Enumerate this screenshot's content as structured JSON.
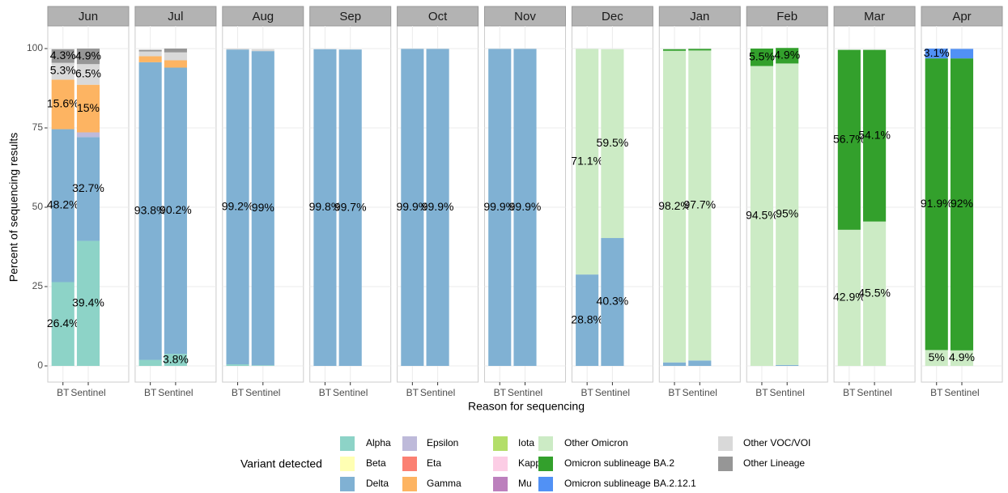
{
  "chart_data": {
    "type": "stacked-bar-facets",
    "y_label": "Percent of sequencing results",
    "x_label": "Reason for sequencing",
    "legend_title": "Variant detected",
    "ylim": [
      0,
      100
    ],
    "yticks": [
      0,
      25,
      50,
      75,
      100
    ],
    "grid": true,
    "facets": [
      "Jun",
      "Jul",
      "Aug",
      "Sep",
      "Oct",
      "Nov",
      "Dec",
      "Jan",
      "Feb",
      "Mar",
      "Apr"
    ],
    "categories": [
      "BT",
      "Sentinel"
    ],
    "series": [
      {
        "name": "Alpha",
        "color": "#8dd3c7",
        "values": [
          [
            26.4,
            39.4
          ],
          [
            1.9,
            3.8
          ],
          [
            0.5,
            0.2
          ],
          [
            0,
            0
          ],
          [
            0,
            0
          ],
          [
            0,
            0
          ],
          [
            0,
            0
          ],
          [
            0,
            0
          ],
          [
            0,
            0
          ],
          [
            0,
            0
          ],
          [
            0,
            0
          ]
        ],
        "value_labels": [
          [
            "26.4%",
            "39.4%"
          ],
          [
            null,
            "3.8%"
          ],
          [
            null,
            null
          ],
          [
            null,
            null
          ],
          [
            null,
            null
          ],
          [
            null,
            null
          ],
          [
            null,
            null
          ],
          [
            null,
            null
          ],
          [
            null,
            null
          ],
          [
            null,
            null
          ],
          [
            null,
            null
          ]
        ]
      },
      {
        "name": "Beta",
        "color": "#ffffb3"
      },
      {
        "name": "Delta",
        "color": "#80b1d3",
        "values": [
          [
            48.2,
            32.7
          ],
          [
            93.8,
            90.2
          ],
          [
            99.2,
            99
          ],
          [
            99.8,
            99.7
          ],
          [
            99.9,
            99.9
          ],
          [
            99.9,
            99.9
          ],
          [
            28.8,
            40.3
          ],
          [
            1.1,
            1.7
          ],
          [
            0,
            0.3
          ],
          [
            0,
            0
          ],
          [
            0,
            0
          ]
        ],
        "value_labels": [
          [
            "48.2%",
            "32.7%"
          ],
          [
            "93.8%",
            "90.2%"
          ],
          [
            "99.2%",
            "99%"
          ],
          [
            "99.8%",
            "99.7%"
          ],
          [
            "99.9%",
            "99.9%"
          ],
          [
            "99.9%",
            "99.9%"
          ],
          [
            "28.8%",
            "40.3%"
          ],
          [
            null,
            null
          ],
          [
            null,
            null
          ],
          [
            null,
            null
          ],
          [
            null,
            null
          ]
        ]
      },
      {
        "name": "Epsilon",
        "color": "#bebada",
        "values": [
          [
            0,
            1.5
          ],
          [
            0,
            0
          ],
          [
            0,
            0
          ],
          [
            0,
            0
          ],
          [
            0,
            0
          ],
          [
            0,
            0
          ],
          [
            0,
            0
          ],
          [
            0,
            0
          ],
          [
            0,
            0
          ],
          [
            0,
            0
          ],
          [
            0,
            0
          ]
        ]
      },
      {
        "name": "Eta",
        "color": "#fb8072"
      },
      {
        "name": "Gamma",
        "color": "#fdb462",
        "values": [
          [
            15.6,
            15
          ],
          [
            1.9,
            2.3
          ],
          [
            0,
            0
          ],
          [
            0,
            0
          ],
          [
            0,
            0
          ],
          [
            0,
            0
          ],
          [
            0,
            0
          ],
          [
            0,
            0
          ],
          [
            0,
            0
          ],
          [
            0,
            0
          ],
          [
            0,
            0
          ]
        ],
        "value_labels": [
          [
            "15.6%",
            "15%"
          ],
          [
            null,
            null
          ],
          [
            null,
            null
          ],
          [
            null,
            null
          ],
          [
            null,
            null
          ],
          [
            null,
            null
          ],
          [
            null,
            null
          ],
          [
            null,
            null
          ],
          [
            null,
            null
          ],
          [
            null,
            null
          ],
          [
            null,
            null
          ]
        ]
      },
      {
        "name": "Iota",
        "color": "#b3de69"
      },
      {
        "name": "Kappa",
        "color": "#fccde5"
      },
      {
        "name": "Mu",
        "color": "#bc80bd"
      },
      {
        "name": "Other Omicron",
        "color": "#ccebc5",
        "values": [
          [
            0,
            0
          ],
          [
            0,
            0
          ],
          [
            0,
            0
          ],
          [
            0,
            0
          ],
          [
            0,
            0
          ],
          [
            0,
            0
          ],
          [
            71.1,
            59.5
          ],
          [
            98.2,
            97.7
          ],
          [
            94.5,
            95
          ],
          [
            42.9,
            45.5
          ],
          [
            5,
            4.9
          ]
        ],
        "value_labels": [
          [
            null,
            null
          ],
          [
            null,
            null
          ],
          [
            null,
            null
          ],
          [
            null,
            null
          ],
          [
            null,
            null
          ],
          [
            null,
            null
          ],
          [
            "71.1%",
            "59.5%"
          ],
          [
            "98.2%",
            "97.7%"
          ],
          [
            "94.5%",
            "95%"
          ],
          [
            "42.9%",
            "45.5%"
          ],
          [
            "5%",
            "4.9%"
          ]
        ]
      },
      {
        "name": "Omicron sublineage BA.2",
        "color": "#33a02c",
        "values": [
          [
            0,
            0
          ],
          [
            0,
            0
          ],
          [
            0,
            0
          ],
          [
            0,
            0
          ],
          [
            0,
            0
          ],
          [
            0,
            0
          ],
          [
            0,
            0
          ],
          [
            0.5,
            0.5
          ],
          [
            5.5,
            4.9
          ],
          [
            56.7,
            54.1
          ],
          [
            91.9,
            92
          ]
        ],
        "value_labels": [
          [
            null,
            null
          ],
          [
            null,
            null
          ],
          [
            null,
            null
          ],
          [
            null,
            null
          ],
          [
            null,
            null
          ],
          [
            null,
            null
          ],
          [
            null,
            null
          ],
          [
            null,
            null
          ],
          [
            "5.5%",
            "4.9%"
          ],
          [
            "56.7%",
            "54.1%"
          ],
          [
            "91.9%",
            "92%"
          ]
        ]
      },
      {
        "name": "Omicron sublineage BA.2.12.1",
        "color": "#5191f5",
        "values": [
          [
            0,
            0
          ],
          [
            0,
            0
          ],
          [
            0,
            0
          ],
          [
            0,
            0
          ],
          [
            0,
            0
          ],
          [
            0,
            0
          ],
          [
            0,
            0
          ],
          [
            0,
            0
          ],
          [
            0,
            0
          ],
          [
            0,
            0
          ],
          [
            3.1,
            3
          ]
        ],
        "value_labels": [
          [
            null,
            null
          ],
          [
            null,
            null
          ],
          [
            null,
            null
          ],
          [
            null,
            null
          ],
          [
            null,
            null
          ],
          [
            null,
            null
          ],
          [
            null,
            null
          ],
          [
            null,
            null
          ],
          [
            null,
            null
          ],
          [
            null,
            null
          ],
          [
            "3.1%",
            null
          ]
        ]
      },
      {
        "name": "Other VOC/VOI",
        "color": "#d9d9d9",
        "values": [
          [
            5.3,
            6.5
          ],
          [
            1.5,
            2.5
          ],
          [
            0.3,
            0.6
          ],
          [
            0,
            0
          ],
          [
            0,
            0
          ],
          [
            0,
            0
          ],
          [
            0,
            0
          ],
          [
            0,
            0
          ],
          [
            0,
            0
          ],
          [
            0,
            0
          ],
          [
            0,
            0
          ]
        ],
        "value_labels": [
          [
            "5.3%",
            "6.5%"
          ],
          [
            null,
            null
          ],
          [
            null,
            null
          ],
          [
            null,
            null
          ],
          [
            null,
            null
          ],
          [
            null,
            null
          ],
          [
            null,
            null
          ],
          [
            null,
            null
          ],
          [
            null,
            null
          ],
          [
            null,
            null
          ],
          [
            null,
            null
          ]
        ]
      },
      {
        "name": "Other Lineage",
        "color": "#969696",
        "values": [
          [
            4.3,
            4.9
          ],
          [
            0.5,
            1.2
          ],
          [
            0,
            0
          ],
          [
            0,
            0
          ],
          [
            0,
            0
          ],
          [
            0,
            0
          ],
          [
            0,
            0
          ],
          [
            0,
            0
          ],
          [
            0,
            0
          ],
          [
            0,
            0
          ],
          [
            0,
            0
          ]
        ],
        "value_labels": [
          [
            "4.3%",
            "4.9%"
          ],
          [
            null,
            null
          ],
          [
            null,
            null
          ],
          [
            null,
            null
          ],
          [
            null,
            null
          ],
          [
            null,
            null
          ],
          [
            null,
            null
          ],
          [
            null,
            null
          ],
          [
            null,
            null
          ],
          [
            null,
            null
          ],
          [
            null,
            null
          ]
        ]
      }
    ]
  }
}
